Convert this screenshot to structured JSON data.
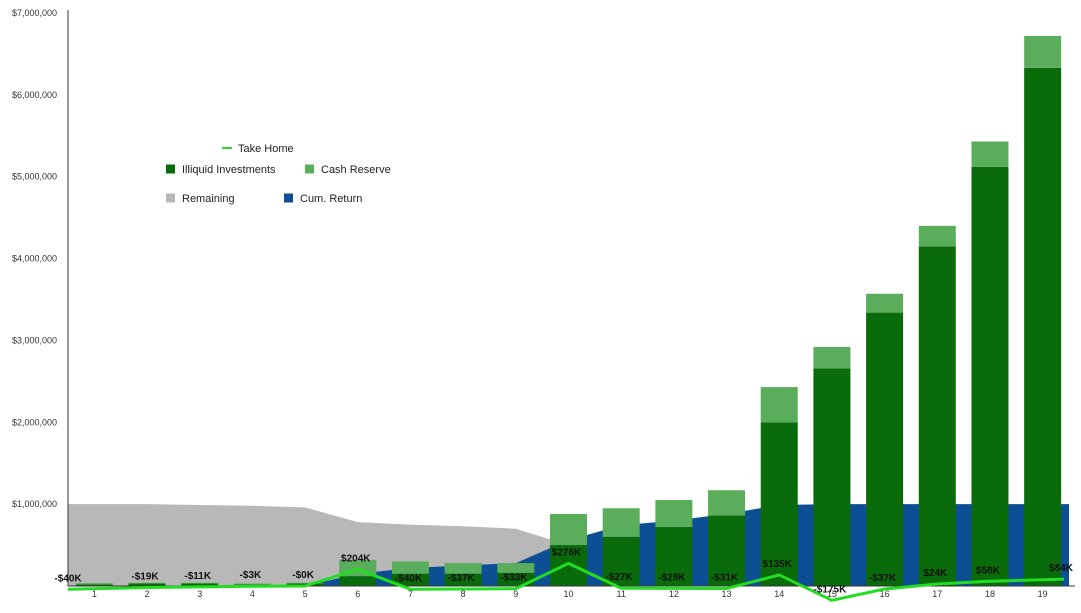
{
  "chart_data": {
    "type": "bar",
    "categories": [
      "1",
      "2",
      "3",
      "4",
      "5",
      "6",
      "7",
      "8",
      "9",
      "10",
      "11",
      "12",
      "13",
      "14",
      "15",
      "16",
      "17",
      "18",
      "19"
    ],
    "ylim": [
      0,
      7000000
    ],
    "y_ticks": [
      {
        "value": 0,
        "label": ""
      },
      {
        "value": 1000000,
        "label": "$1,000,000"
      },
      {
        "value": 2000000,
        "label": "$2,000,000"
      },
      {
        "value": 3000000,
        "label": "$3,000,000"
      },
      {
        "value": 4000000,
        "label": "$4,000,000"
      },
      {
        "value": 5000000,
        "label": "$5,000,000"
      },
      {
        "value": 6000000,
        "label": "$6,000,000"
      },
      {
        "value": 7000000,
        "label": "$7,000,000"
      }
    ],
    "grid": false,
    "legend_position": "top-left",
    "legend": [
      {
        "name": "Take Home",
        "color": "#22dd22",
        "marker": "line"
      },
      {
        "name": "Illiquid Investments",
        "color": "#0a6b0a",
        "marker": "square"
      },
      {
        "name": "Cash Reserve",
        "color": "#5aad5a",
        "marker": "square"
      },
      {
        "name": "Remaining",
        "color": "#b8b8b8",
        "marker": "square"
      },
      {
        "name": "Cum. Return",
        "color": "#0d4f94",
        "marker": "square"
      }
    ],
    "series": [
      {
        "name": "Remaining",
        "type": "area",
        "color": "#b8b8b8",
        "values": [
          1000000,
          1000000,
          990000,
          980000,
          960000,
          780000,
          750000,
          730000,
          700000,
          500000,
          0,
          0,
          0,
          0,
          0,
          0,
          0,
          0,
          0
        ]
      },
      {
        "name": "Cum. Return",
        "type": "area",
        "color": "#0d4f94",
        "values": [
          0,
          0,
          0,
          0,
          0,
          150000,
          220000,
          250000,
          280000,
          560000,
          740000,
          800000,
          880000,
          990000,
          1000000,
          1000000,
          1000000,
          1000000,
          1000000
        ]
      },
      {
        "name": "Illiquid Investments",
        "type": "bar",
        "color": "#0a6b0a",
        "values": [
          20000,
          30000,
          30000,
          20000,
          30000,
          120000,
          150000,
          150000,
          160000,
          500000,
          600000,
          720000,
          860000,
          2000000,
          2660000,
          3340000,
          4150000,
          5120000,
          6330000
        ]
      },
      {
        "name": "Cash Reserve",
        "type": "bar",
        "color": "#5aad5a",
        "values": [
          15000,
          10000,
          10000,
          10000,
          10000,
          200000,
          150000,
          130000,
          120000,
          380000,
          350000,
          330000,
          310000,
          430000,
          260000,
          230000,
          250000,
          310000,
          390000
        ]
      },
      {
        "name": "Take Home",
        "type": "line",
        "color": "#22dd22",
        "values": [
          -40000,
          -19000,
          -11000,
          -3000,
          0,
          204000,
          -40000,
          -37000,
          -33000,
          276000,
          -27000,
          -29000,
          -31000,
          135000,
          -175000,
          -37000,
          24000,
          58000,
          84000
        ],
        "labels": [
          "-$40K",
          "-$19K",
          "-$11K",
          "-$3K",
          "-$0K",
          "$204K",
          "-$40K",
          "-$37K",
          "-$33K",
          "$276K",
          "-$27K",
          "-$29K",
          "-$31K",
          "$135K",
          "-$175K",
          "-$37K",
          "$24K",
          "$58K",
          "$84K"
        ]
      }
    ]
  }
}
